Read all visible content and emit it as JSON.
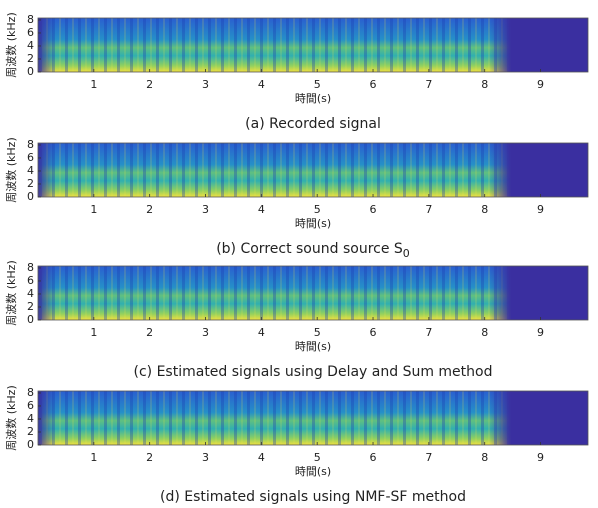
{
  "chart_data": [
    {
      "type": "spectrogram",
      "ylabel": "周波数 (kHz)",
      "xlabel": "時間(s)",
      "caption": "(a) Recorded signal",
      "xlim": [
        0,
        9.85
      ],
      "ylim": [
        0,
        8.3
      ],
      "xticks": [
        1,
        2,
        3,
        4,
        5,
        6,
        7,
        8,
        9
      ],
      "yticks": [
        0,
        2,
        4,
        6,
        8
      ]
    },
    {
      "type": "spectrogram",
      "ylabel": "周波数 (kHz)",
      "xlabel": "時間(s)",
      "caption": "(b) Correct sound source S",
      "caption_subscript": "0",
      "xlim": [
        0,
        9.85
      ],
      "ylim": [
        0,
        8.3
      ],
      "xticks": [
        1,
        2,
        3,
        4,
        5,
        6,
        7,
        8,
        9
      ],
      "yticks": [
        0,
        2,
        4,
        6,
        8
      ]
    },
    {
      "type": "spectrogram",
      "ylabel": "周波数 (kHz)",
      "xlabel": "時間(s)",
      "caption": "(c) Estimated signals using Delay and Sum method",
      "xlim": [
        0,
        9.85
      ],
      "ylim": [
        0,
        8.3
      ],
      "xticks": [
        1,
        2,
        3,
        4,
        5,
        6,
        7,
        8,
        9
      ],
      "yticks": [
        0,
        2,
        4,
        6,
        8
      ]
    },
    {
      "type": "spectrogram",
      "ylabel": "周波数 (kHz)",
      "xlabel": "時間(s)",
      "caption": "(d) Estimated signals using NMF-SF method",
      "xlim": [
        0,
        9.85
      ],
      "ylim": [
        0,
        8.3
      ],
      "xticks": [
        1,
        2,
        3,
        4,
        5,
        6,
        7,
        8,
        9
      ],
      "yticks": [
        0,
        2,
        4,
        6,
        8
      ]
    }
  ]
}
